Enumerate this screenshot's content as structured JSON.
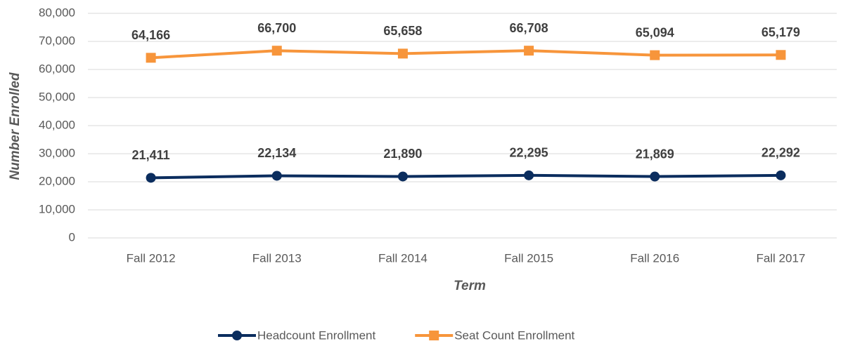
{
  "chart_data": {
    "type": "line",
    "x_label": "Term",
    "y_label": "Number Enrolled",
    "categories": [
      "Fall 2012",
      "Fall 2013",
      "Fall 2014",
      "Fall 2015",
      "Fall 2016",
      "Fall 2017"
    ],
    "series": [
      {
        "name": "Headcount Enrollment",
        "color": "#0b2d5e",
        "marker": "circle",
        "values": [
          21411,
          22134,
          21890,
          22295,
          21869,
          22292
        ],
        "value_labels": [
          "21,411",
          "22,134",
          "21,890",
          "22,295",
          "21,869",
          "22,292"
        ]
      },
      {
        "name": "Seat Count Enrollment",
        "color": "#f7953b",
        "marker": "square",
        "values": [
          64166,
          66700,
          65658,
          66708,
          65094,
          65179
        ],
        "value_labels": [
          "64,166",
          "66,700",
          "65,658",
          "66,708",
          "65,094",
          "65,179"
        ]
      }
    ],
    "ylim": [
      0,
      80000
    ],
    "yticks": [
      0,
      {
        "value": 10000,
        "label": "10,000"
      },
      {
        "value": 20000,
        "label": "20,000"
      },
      {
        "value": 30000,
        "label": "30,000"
      },
      {
        "value": 40000,
        "label": "40,000"
      },
      {
        "value": 50000,
        "label": "50,000"
      },
      {
        "value": 60000,
        "label": "60,000"
      },
      {
        "value": 70000,
        "label": "70,000"
      },
      {
        "value": 80000,
        "label": "80,000"
      }
    ],
    "grid": true,
    "legend": "bottom"
  }
}
